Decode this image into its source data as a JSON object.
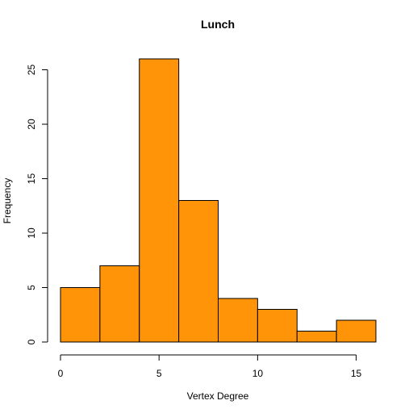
{
  "chart_data": {
    "type": "bar",
    "title": "Lunch",
    "xlabel": "Vertex Degree",
    "ylabel": "Frequency",
    "bins": [
      {
        "start": 0,
        "end": 2,
        "value": 5
      },
      {
        "start": 2,
        "end": 4,
        "value": 7
      },
      {
        "start": 4,
        "end": 6,
        "value": 26
      },
      {
        "start": 6,
        "end": 8,
        "value": 13
      },
      {
        "start": 8,
        "end": 10,
        "value": 4
      },
      {
        "start": 10,
        "end": 12,
        "value": 3
      },
      {
        "start": 12,
        "end": 14,
        "value": 1
      },
      {
        "start": 14,
        "end": 16,
        "value": 2
      }
    ],
    "xlim": [
      0,
      16
    ],
    "ylim": [
      0,
      26
    ],
    "xticks": [
      0,
      5,
      10,
      15
    ],
    "yticks": [
      0,
      5,
      10,
      15,
      20,
      25
    ],
    "bar_color": "#FF9408",
    "grid": false,
    "legend": "none"
  }
}
